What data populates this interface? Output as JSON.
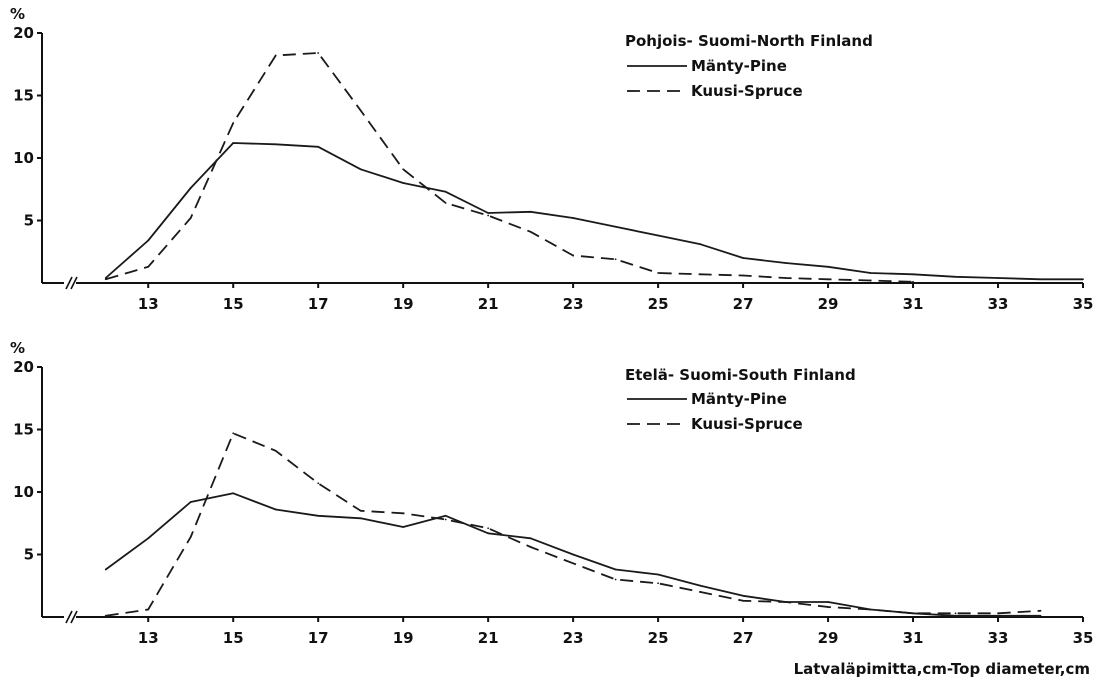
{
  "chart_data": [
    {
      "type": "line",
      "title": "Pohjois- Suomi-North Finland",
      "ylabel": "%",
      "xlabel": "",
      "xlim": [
        10.5,
        35
      ],
      "ylim": [
        0,
        20
      ],
      "x_ticks": [
        13,
        15,
        17,
        19,
        21,
        23,
        25,
        27,
        29,
        31,
        33,
        35
      ],
      "y_ticks": [
        5,
        10,
        15,
        20
      ],
      "legend_position": "top-right",
      "axis_break": "//",
      "series": [
        {
          "name": "Mänty-Pine",
          "style": "solid",
          "x": [
            12,
            13,
            14,
            15,
            16,
            17,
            18,
            19,
            20,
            21,
            22,
            23,
            24,
            25,
            26,
            27,
            28,
            29,
            30,
            31,
            32,
            33,
            34,
            35
          ],
          "y": [
            0.4,
            3.4,
            7.6,
            11.2,
            11.1,
            10.9,
            9.1,
            8,
            7.3,
            5.6,
            5.7,
            5.2,
            4.5,
            3.8,
            3.1,
            2,
            1.6,
            1.3,
            0.8,
            0.7,
            0.5,
            0.4,
            0.3,
            0.3
          ]
        },
        {
          "name": "Kuusi-Spruce",
          "style": "dashed",
          "x": [
            12,
            13,
            14,
            15,
            16,
            17,
            18,
            19,
            20,
            21,
            22,
            23,
            24,
            25,
            26,
            27,
            28,
            29,
            30,
            31
          ],
          "y": [
            0.3,
            1.3,
            5.2,
            12.8,
            18.2,
            18.4,
            13.8,
            9.1,
            6.4,
            5.4,
            4.1,
            2.2,
            1.9,
            0.8,
            0.7,
            0.6,
            0.4,
            0.3,
            0.2,
            0.1
          ]
        }
      ]
    },
    {
      "type": "line",
      "title": "Etelä- Suomi-South Finland",
      "ylabel": "%",
      "xlabel": "Latvaläpimitta,cm-Top diameter,cm",
      "xlim": [
        10.5,
        35
      ],
      "ylim": [
        0,
        20
      ],
      "x_ticks": [
        13,
        15,
        17,
        19,
        21,
        23,
        25,
        27,
        29,
        31,
        33,
        35
      ],
      "y_ticks": [
        5,
        10,
        15,
        20
      ],
      "legend_position": "top-right",
      "axis_break": "//",
      "series": [
        {
          "name": "Mänty-Pine",
          "style": "solid",
          "x": [
            12,
            13,
            14,
            15,
            16,
            17,
            18,
            19,
            20,
            21,
            22,
            23,
            24,
            25,
            26,
            27,
            28,
            29,
            30,
            31,
            32,
            33,
            34
          ],
          "y": [
            3.8,
            6.3,
            9.2,
            9.9,
            8.6,
            8.1,
            7.9,
            7.2,
            8.1,
            6.7,
            6.3,
            5,
            3.8,
            3.4,
            2.5,
            1.7,
            1.2,
            1.2,
            0.6,
            0.3,
            0.1,
            0.1,
            0.1
          ]
        },
        {
          "name": "Kuusi-Spruce",
          "style": "dashed",
          "x": [
            12,
            13,
            14,
            15,
            16,
            17,
            18,
            19,
            20,
            21,
            22,
            23,
            24,
            25,
            26,
            27,
            28,
            29,
            30,
            31,
            32,
            33,
            34
          ],
          "y": [
            0.1,
            0.6,
            6.4,
            14.7,
            13.3,
            10.7,
            8.5,
            8.3,
            7.8,
            7.1,
            5.6,
            4.3,
            3,
            2.7,
            2,
            1.3,
            1.2,
            0.8,
            0.6,
            0.3,
            0.3,
            0.3,
            0.5
          ]
        }
      ]
    }
  ]
}
